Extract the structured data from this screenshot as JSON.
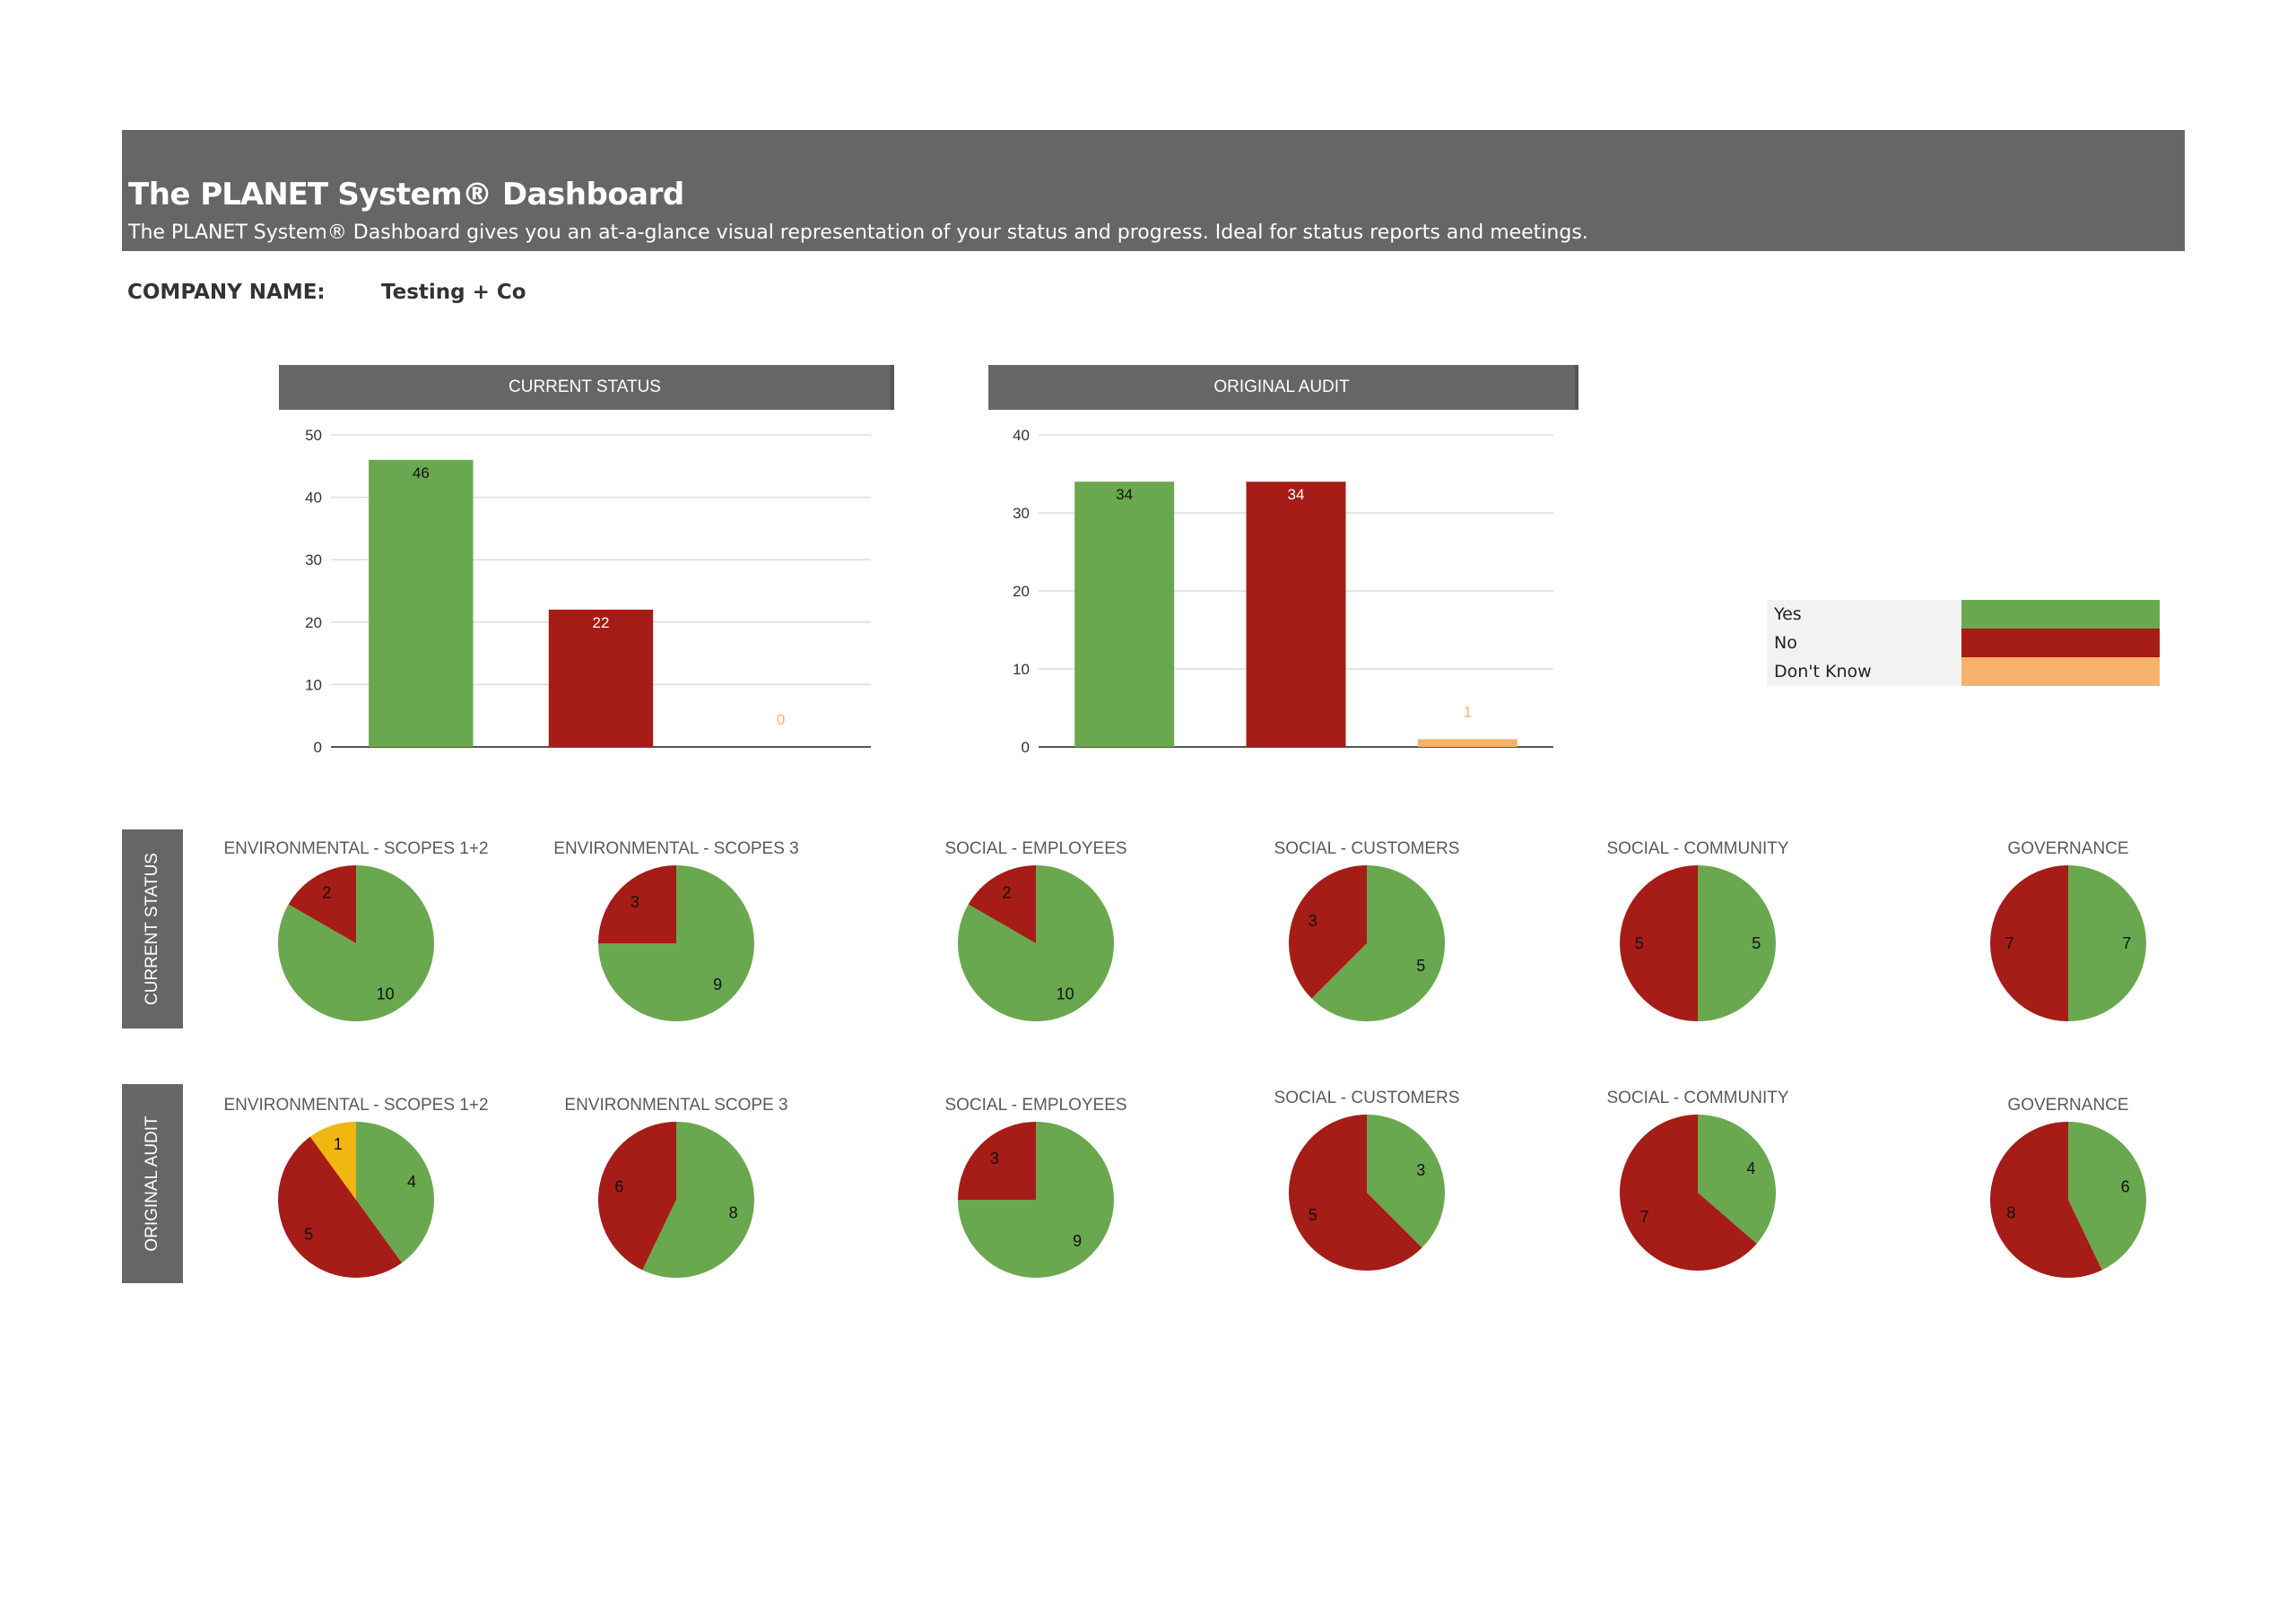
{
  "header": {
    "title_prefix": "The ",
    "title_brand": "PLANET",
    "title_suffix": " System® Dashboard",
    "subtitle": "The PLANET System® Dashboard gives you an at-a-glance visual representation of your status and progress. Ideal for status reports and meetings."
  },
  "company": {
    "label": "COMPANY NAME:",
    "value": "Testing + Co"
  },
  "colors": {
    "yes": "#6aa84f",
    "no": "#a61c16",
    "dont_know": "#f6b26b",
    "unknown_slice": "#f1b60f",
    "header_bg": "#666666"
  },
  "legend": {
    "items": [
      {
        "label": "Yes",
        "color": "#6aa84f"
      },
      {
        "label": "No",
        "color": "#a61c16"
      },
      {
        "label": "Don't Know",
        "color": "#f6b26b"
      }
    ]
  },
  "rows": {
    "current": "CURRENT STATUS",
    "original": "ORIGINAL AUDIT"
  },
  "chart_data": [
    {
      "type": "bar",
      "title": "CURRENT STATUS",
      "categories": [
        "Yes",
        "No",
        "Don't Know"
      ],
      "values": [
        46,
        22,
        0
      ],
      "colors": [
        "#6aa84f",
        "#a61c16",
        "#f6b26b"
      ],
      "ylim": [
        0,
        50
      ],
      "yticks": [
        0,
        10,
        20,
        30,
        40,
        50
      ],
      "grid": true
    },
    {
      "type": "bar",
      "title": "ORIGINAL AUDIT",
      "categories": [
        "Yes",
        "No",
        "Don't Know"
      ],
      "values": [
        34,
        34,
        1
      ],
      "colors": [
        "#6aa84f",
        "#a61c16",
        "#f6b26b"
      ],
      "ylim": [
        0,
        40
      ],
      "yticks": [
        0,
        10,
        20,
        30,
        40
      ],
      "grid": true
    },
    {
      "type": "pie",
      "row": "CURRENT STATUS",
      "title": "ENVIRONMENTAL - SCOPES 1+2",
      "slices": [
        {
          "label": "Yes",
          "value": 10
        },
        {
          "label": "No",
          "value": 2
        }
      ]
    },
    {
      "type": "pie",
      "row": "CURRENT STATUS",
      "title": "ENVIRONMENTAL - SCOPES 3",
      "slices": [
        {
          "label": "Yes",
          "value": 9
        },
        {
          "label": "No",
          "value": 3
        }
      ]
    },
    {
      "type": "pie",
      "row": "CURRENT STATUS",
      "title": "SOCIAL - EMPLOYEES",
      "slices": [
        {
          "label": "Yes",
          "value": 10
        },
        {
          "label": "No",
          "value": 2
        }
      ]
    },
    {
      "type": "pie",
      "row": "CURRENT STATUS",
      "title": "SOCIAL - CUSTOMERS",
      "slices": [
        {
          "label": "Yes",
          "value": 5
        },
        {
          "label": "No",
          "value": 3
        }
      ]
    },
    {
      "type": "pie",
      "row": "CURRENT STATUS",
      "title": "SOCIAL - COMMUNITY",
      "slices": [
        {
          "label": "Yes",
          "value": 5
        },
        {
          "label": "No",
          "value": 5
        }
      ]
    },
    {
      "type": "pie",
      "row": "CURRENT STATUS",
      "title": "GOVERNANCE",
      "slices": [
        {
          "label": "Yes",
          "value": 7
        },
        {
          "label": "No",
          "value": 7
        }
      ]
    },
    {
      "type": "pie",
      "row": "ORIGINAL AUDIT",
      "title": "ENVIRONMENTAL - SCOPES 1+2",
      "slices": [
        {
          "label": "Yes",
          "value": 4
        },
        {
          "label": "No",
          "value": 5
        },
        {
          "label": "Don't Know",
          "value": 1
        }
      ]
    },
    {
      "type": "pie",
      "row": "ORIGINAL AUDIT",
      "title": "ENVIRONMENTAL SCOPE 3",
      "slices": [
        {
          "label": "Yes",
          "value": 8
        },
        {
          "label": "No",
          "value": 6
        }
      ]
    },
    {
      "type": "pie",
      "row": "ORIGINAL AUDIT",
      "title": "SOCIAL - EMPLOYEES",
      "slices": [
        {
          "label": "Yes",
          "value": 9
        },
        {
          "label": "No",
          "value": 3
        }
      ]
    },
    {
      "type": "pie",
      "row": "ORIGINAL AUDIT",
      "title": "SOCIAL - CUSTOMERS",
      "slices": [
        {
          "label": "Yes",
          "value": 3
        },
        {
          "label": "No",
          "value": 5
        }
      ]
    },
    {
      "type": "pie",
      "row": "ORIGINAL AUDIT",
      "title": "SOCIAL - COMMUNITY",
      "slices": [
        {
          "label": "Yes",
          "value": 4
        },
        {
          "label": "No",
          "value": 7
        }
      ]
    },
    {
      "type": "pie",
      "row": "ORIGINAL AUDIT",
      "title": "GOVERNANCE",
      "slices": [
        {
          "label": "Yes",
          "value": 6
        },
        {
          "label": "No",
          "value": 8
        }
      ]
    }
  ]
}
